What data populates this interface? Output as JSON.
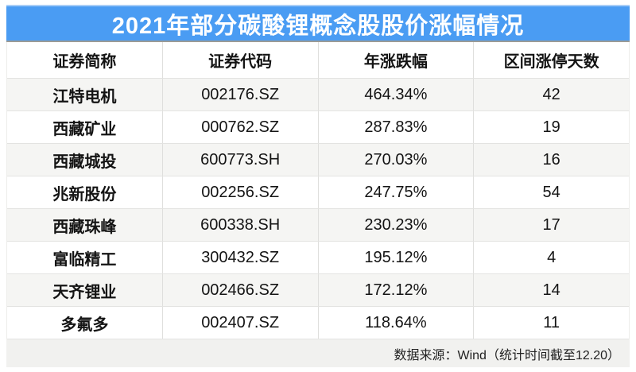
{
  "title": "2021年部分碳酸锂概念股股价涨幅情况",
  "table": {
    "headers": [
      "证券简称",
      "证券代码",
      "年涨跌幅",
      "区间涨停天数"
    ],
    "rows": [
      {
        "name": "江特电机",
        "code": "002176.SZ",
        "change": "464.34%",
        "days": "42"
      },
      {
        "name": "西藏矿业",
        "code": "000762.SZ",
        "change": "287.83%",
        "days": "19"
      },
      {
        "name": "西藏城投",
        "code": "600773.SH",
        "change": "270.03%",
        "days": "16"
      },
      {
        "name": "兆新股份",
        "code": "002256.SZ",
        "change": "247.75%",
        "days": "54"
      },
      {
        "name": "西藏珠峰",
        "code": "600338.SH",
        "change": "230.23%",
        "days": "17"
      },
      {
        "name": "富临精工",
        "code": "300432.SZ",
        "change": "195.12%",
        "days": "4"
      },
      {
        "name": "天齐锂业",
        "code": "002466.SZ",
        "change": "172.12%",
        "days": "14"
      },
      {
        "name": "多氟多",
        "code": "002407.SZ",
        "change": "118.64%",
        "days": "11"
      }
    ]
  },
  "footer": {
    "source_note": "数据来源：Wind（统计时间截至12.20）"
  },
  "colors": {
    "title_bar_blue": "#4A9CF3",
    "title_bar_top_edge": "#A9CEF6",
    "title_bar_bottom_line": "#9A9A96",
    "alt_row_bg": "#F5F5F3",
    "footer_bg": "#F1F1EF",
    "row_separator": "#E3E3E1",
    "column_divider": "#DFDFDD",
    "text": "#141414",
    "title_text": "#FFFFFF"
  },
  "chart_data": {
    "type": "table",
    "title": "2021年部分碳酸锂概念股股价涨幅情况",
    "columns": [
      "证券简称",
      "证券代码",
      "年涨跌幅",
      "区间涨停天数"
    ],
    "rows": [
      [
        "江特电机",
        "002176.SZ",
        "464.34%",
        42
      ],
      [
        "西藏矿业",
        "000762.SZ",
        "287.83%",
        19
      ],
      [
        "西藏城投",
        "600773.SH",
        "270.03%",
        16
      ],
      [
        "兆新股份",
        "002256.SZ",
        "247.75%",
        54
      ],
      [
        "西藏珠峰",
        "600338.SH",
        "230.23%",
        17
      ],
      [
        "富临精工",
        "300432.SZ",
        "195.12%",
        4
      ],
      [
        "天齐锂业",
        "002466.SZ",
        "172.12%",
        14
      ],
      [
        "多氟多",
        "002407.SZ",
        "118.64%",
        11
      ]
    ],
    "yoy_change_percent": [
      464.34,
      287.83,
      270.03,
      247.75,
      230.23,
      195.12,
      172.12,
      118.64
    ],
    "limit_up_days": [
      42,
      19,
      16,
      54,
      17,
      4,
      14,
      11
    ],
    "source": "数据来源：Wind（统计时间截至12.20）"
  }
}
